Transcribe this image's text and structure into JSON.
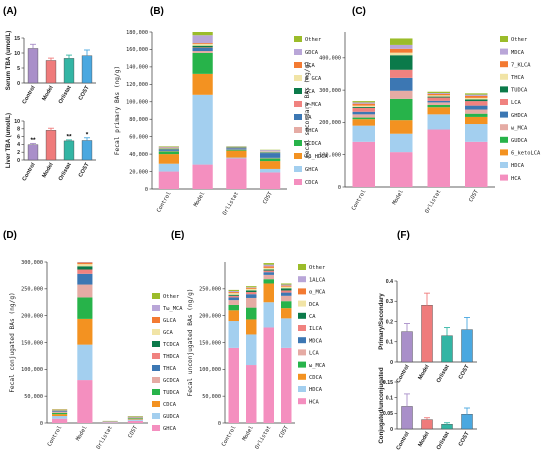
{
  "chart_data": [
    {
      "panel": "(A)",
      "type": "bar",
      "ylabel": "Serum TBA (umol/L)",
      "categories": [
        "Control",
        "Model",
        "Orlistat",
        "COST"
      ],
      "values": [
        11.5,
        7.5,
        8.2,
        9.1
      ],
      "errors": [
        1.4,
        0.8,
        1.1,
        1.9
      ],
      "sig": [
        "",
        "",
        "",
        ""
      ],
      "ylim": [
        0,
        15
      ],
      "yticks": [
        0,
        5,
        10,
        15
      ],
      "colors": [
        "#a98fc9",
        "#ef7b7b",
        "#33b5a4",
        "#4aa8e0"
      ]
    },
    {
      "panel": "",
      "type": "bar",
      "ylabel": "Liver TBA (umol/L)",
      "categories": [
        "Control",
        "Model",
        "Orlistat",
        "COST"
      ],
      "values": [
        3.9,
        7.6,
        4.9,
        5.0
      ],
      "errors": [
        0.35,
        0.55,
        0.25,
        0.7
      ],
      "sig": [
        "**",
        "",
        "**",
        "*"
      ],
      "ylim": [
        0,
        10
      ],
      "yticks": [
        0,
        2,
        4,
        6,
        8,
        10
      ],
      "colors": [
        "#a98fc9",
        "#ef7b7b",
        "#33b5a4",
        "#4aa8e0"
      ]
    },
    {
      "panel": "(B)",
      "type": "bar",
      "stacked": true,
      "ylabel": "Fecal primary BAs (ng/g)",
      "categories": [
        "Control",
        "Model",
        "Orlistat",
        "COST"
      ],
      "ylim": [
        0,
        180000
      ],
      "yticks": [
        0,
        20000,
        40000,
        60000,
        80000,
        100000,
        120000,
        140000,
        160000,
        180000
      ],
      "ytick_labels": [
        "0",
        "20,000",
        "40,000",
        "60,000",
        "80,000",
        "100,000",
        "120,000",
        "140,000",
        "160,000",
        "180,000"
      ],
      "legend": [
        "Other",
        "GDCA",
        "UCA",
        "β GCA",
        "GCA",
        "α_MCA",
        "CA",
        "THCA",
        "GCDCA",
        "3β_HDCA",
        "GHCA",
        "CDCA"
      ],
      "series": [
        {
          "name": "CDCA",
          "color": "#f48fbf",
          "values": [
            20000,
            28000,
            35000,
            19000
          ]
        },
        {
          "name": "GHCA",
          "color": "#a3cfef",
          "values": [
            9000,
            80000,
            1000,
            4000
          ]
        },
        {
          "name": "3β_HDCA",
          "color": "#f39221",
          "values": [
            11000,
            24000,
            8000,
            9000
          ]
        },
        {
          "name": "GCDCA",
          "color": "#27b34a",
          "values": [
            3000,
            24000,
            1000,
            3000
          ]
        },
        {
          "name": "THCA",
          "color": "#e5aba4",
          "values": [
            700,
            2200,
            300,
            700
          ]
        },
        {
          "name": "CA",
          "color": "#3c77b3",
          "values": [
            1500,
            3500,
            1500,
            5500
          ]
        },
        {
          "name": "α_MCA",
          "color": "#f0827f",
          "values": [
            300,
            600,
            300,
            300
          ]
        },
        {
          "name": "GCA",
          "color": "#0b7a4a",
          "values": [
            800,
            2000,
            600,
            700
          ]
        },
        {
          "name": "β GCA",
          "color": "#f1e4a6",
          "values": [
            600,
            2000,
            200,
            700
          ]
        },
        {
          "name": "UCA",
          "color": "#f37a32",
          "values": [
            500,
            1000,
            200,
            200
          ]
        },
        {
          "name": "GDCA",
          "color": "#b9a6d8",
          "values": [
            1000,
            9000,
            500,
            1500
          ]
        },
        {
          "name": "Other",
          "color": "#9bbc2a",
          "values": [
            600,
            3700,
            400,
            400
          ]
        }
      ]
    },
    {
      "panel": "(C)",
      "type": "bar",
      "stacked": true,
      "ylabel": "Fecal secondary BAs (ng/g)",
      "categories": [
        "Control",
        "Model",
        "Orlistat",
        "COST"
      ],
      "ylim": [
        0,
        480000
      ],
      "yticks": [
        0,
        100000,
        200000,
        300000,
        400000
      ],
      "ytick_labels": [
        "0",
        "100,000",
        "200,000",
        "300,000",
        "400,000"
      ],
      "legend": [
        "Other",
        "MDCA",
        "7_KLCA",
        "THCA",
        "TUDCA",
        "LCA",
        "GHDCA",
        "ω_MCA",
        "GUDCA",
        "6_ketoLCA",
        "HDCA",
        "HCA"
      ],
      "series": [
        {
          "name": "HCA",
          "color": "#f48fbf",
          "values": [
            140000,
            108000,
            178000,
            140000
          ]
        },
        {
          "name": "HDCA",
          "color": "#a3cfef",
          "values": [
            50000,
            57000,
            47000,
            55000
          ]
        },
        {
          "name": "6_ketoLCA",
          "color": "#f39221",
          "values": [
            20000,
            42000,
            22000,
            22000
          ]
        },
        {
          "name": "GUDCA",
          "color": "#27b34a",
          "values": [
            5000,
            66000,
            7000,
            10000
          ]
        },
        {
          "name": "ω_MCA",
          "color": "#e5aba4",
          "values": [
            10000,
            25000,
            8000,
            13000
          ]
        },
        {
          "name": "GHDCA",
          "color": "#3c77b3",
          "values": [
            8000,
            40000,
            5000,
            12000
          ]
        },
        {
          "name": "LCA",
          "color": "#f0827f",
          "values": [
            12000,
            25000,
            10000,
            14000
          ]
        },
        {
          "name": "TUDCA",
          "color": "#0b7a4a",
          "values": [
            3000,
            45000,
            3000,
            5000
          ]
        },
        {
          "name": "THCA",
          "color": "#f1e4a6",
          "values": [
            4000,
            8000,
            4000,
            5000
          ]
        },
        {
          "name": "7_KLCA",
          "color": "#f37a32",
          "values": [
            6000,
            12000,
            4000,
            6000
          ]
        },
        {
          "name": "MDCA",
          "color": "#b9a6d8",
          "values": [
            4000,
            12000,
            3000,
            4000
          ]
        },
        {
          "name": "Other",
          "color": "#9bbc2a",
          "values": [
            4000,
            20000,
            4000,
            4000
          ]
        }
      ]
    },
    {
      "panel": "(D)",
      "type": "bar",
      "stacked": true,
      "ylabel": "Fecal conjugated BAs (ng/g)",
      "categories": [
        "Control",
        "Model",
        "Orlistat",
        "COST"
      ],
      "ylim": [
        0,
        300000
      ],
      "yticks": [
        0,
        50000,
        100000,
        150000,
        200000,
        250000,
        300000
      ],
      "ytick_labels": [
        "0",
        "50,000",
        "100,000",
        "150,000",
        "200,000",
        "250,000",
        "300,000"
      ],
      "legend": [
        "Other",
        "Tω_MCA",
        "GLCA",
        "GCA",
        "TCDCA",
        "THDCA",
        "THCA",
        "GCDCA",
        "TUDCA",
        "CDCA",
        "GUDCA",
        "GHCA"
      ],
      "series": [
        {
          "name": "GHCA",
          "color": "#f48fbf",
          "values": [
            8000,
            80000,
            1000,
            4000
          ]
        },
        {
          "name": "GUDCA",
          "color": "#a3cfef",
          "values": [
            5000,
            66000,
            800,
            2500
          ]
        },
        {
          "name": "CDCA",
          "color": "#f39221",
          "values": [
            3500,
            48000,
            400,
            1500
          ]
        },
        {
          "name": "TUDCA",
          "color": "#27b34a",
          "values": [
            2500,
            40000,
            300,
            1200
          ]
        },
        {
          "name": "GCDCA",
          "color": "#e5aba4",
          "values": [
            1500,
            24000,
            200,
            800
          ]
        },
        {
          "name": "THCA",
          "color": "#3c77b3",
          "values": [
            1500,
            20000,
            200,
            700
          ]
        },
        {
          "name": "THDCA",
          "color": "#f0827f",
          "values": [
            1000,
            8000,
            200,
            500
          ]
        },
        {
          "name": "TCDCA",
          "color": "#0b7a4a",
          "values": [
            800,
            6000,
            200,
            400
          ]
        },
        {
          "name": "GCA",
          "color": "#f1e4a6",
          "values": [
            600,
            4000,
            100,
            300
          ]
        },
        {
          "name": "GLCA",
          "color": "#f37a32",
          "values": [
            500,
            3000,
            100,
            200
          ]
        },
        {
          "name": "Tω_MCA",
          "color": "#b9a6d8",
          "values": [
            400,
            2000,
            100,
            200
          ]
        },
        {
          "name": "Other",
          "color": "#9bbc2a",
          "values": [
            700,
            3000,
            300,
            700
          ]
        }
      ]
    },
    {
      "panel": "(E)",
      "type": "bar",
      "stacked": true,
      "ylabel": "Fecal unconjugated BAs (ng/g)",
      "categories": [
        "Control",
        "Model",
        "Orlistat",
        "COST"
      ],
      "ylim": [
        0,
        300000
      ],
      "yticks": [
        0,
        50000,
        100000,
        150000,
        200000,
        250000
      ],
      "ytick_labels": [
        "0",
        "50,000",
        "100,000",
        "150,000",
        "200,000",
        "250,000"
      ],
      "legend": [
        "Other",
        "1ALCA",
        "α_MCA",
        "DCA",
        "CA",
        "ILCA",
        "MDCA",
        "LCA",
        "ω_MCA",
        "CDCA",
        "HDCA",
        "HCA"
      ],
      "series": [
        {
          "name": "HCA",
          "color": "#f48fbf",
          "values": [
            140000,
            108000,
            178000,
            140000
          ]
        },
        {
          "name": "HDCA",
          "color": "#a3cfef",
          "values": [
            50000,
            57000,
            47000,
            55000
          ]
        },
        {
          "name": "CDCA",
          "color": "#f39221",
          "values": [
            20000,
            28000,
            35000,
            19000
          ]
        },
        {
          "name": "ω_MCA",
          "color": "#27b34a",
          "values": [
            10000,
            22000,
            8000,
            13000
          ]
        },
        {
          "name": "LCA",
          "color": "#e5aba4",
          "values": [
            9000,
            18000,
            8000,
            10000
          ]
        },
        {
          "name": "MDCA",
          "color": "#3c77b3",
          "values": [
            5000,
            7000,
            5000,
            6000
          ]
        },
        {
          "name": "ILCA",
          "color": "#f0827f",
          "values": [
            3000,
            4000,
            3000,
            4000
          ]
        },
        {
          "name": "CA",
          "color": "#0b7a4a",
          "values": [
            2000,
            3000,
            2000,
            4000
          ]
        },
        {
          "name": "DCA",
          "color": "#f1e4a6",
          "values": [
            3000,
            3000,
            3000,
            3000
          ]
        },
        {
          "name": "α_MCA",
          "color": "#f37a32",
          "values": [
            2000,
            2000,
            3000,
            2000
          ]
        },
        {
          "name": "1ALCA",
          "color": "#b9a6d8",
          "values": [
            2000,
            1000,
            3000,
            2000
          ]
        },
        {
          "name": "Other",
          "color": "#9bbc2a",
          "values": [
            2000,
            2000,
            3000,
            2000
          ]
        }
      ]
    },
    {
      "panel": "(F)",
      "type": "bar",
      "ylabel": "Primary/Secondary",
      "categories": [
        "Control",
        "Model",
        "Orlistat",
        "COST"
      ],
      "values": [
        0.15,
        0.28,
        0.13,
        0.16
      ],
      "errors": [
        0.04,
        0.06,
        0.04,
        0.06
      ],
      "sig": [
        "",
        "",
        "",
        ""
      ],
      "ylim": [
        0,
        0.4
      ],
      "yticks": [
        0,
        0.1,
        0.2,
        0.3,
        0.4
      ],
      "colors": [
        "#a98fc9",
        "#ef7b7b",
        "#33b5a4",
        "#4aa8e0"
      ]
    },
    {
      "panel": "",
      "type": "bar",
      "ylabel": "Conjugated/unconjugated",
      "categories": [
        "Control",
        "Model",
        "Orlistat",
        "COST"
      ],
      "values": [
        0.072,
        0.03,
        0.015,
        0.047
      ],
      "errors": [
        0.04,
        0.006,
        0.005,
        0.02
      ],
      "sig": [
        "",
        "",
        "",
        ""
      ],
      "ylim": [
        0,
        0.15
      ],
      "yticks": [
        0,
        0.05,
        0.1,
        0.15
      ],
      "colors": [
        "#a98fc9",
        "#ef7b7b",
        "#33b5a4",
        "#4aa8e0"
      ]
    }
  ]
}
